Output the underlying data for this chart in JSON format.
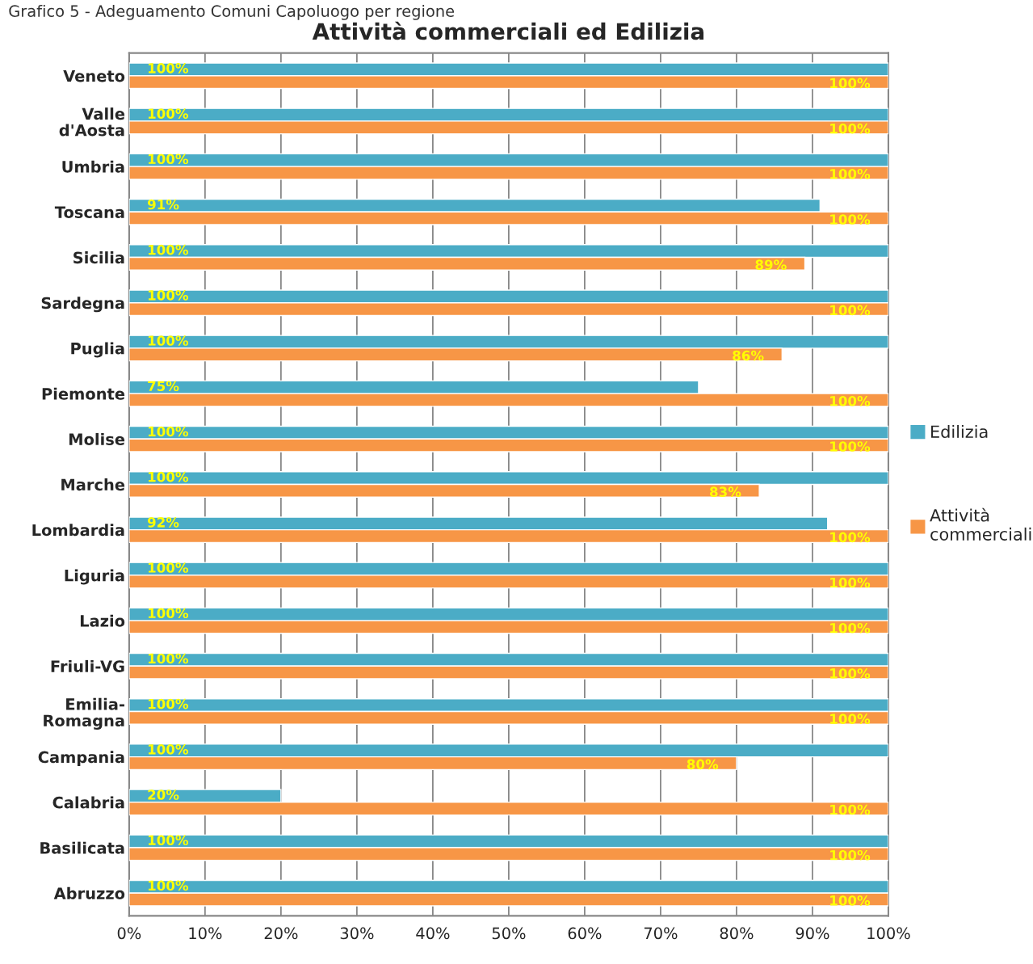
{
  "chart_data": {
    "type": "bar",
    "orientation": "horizontal",
    "title": "Attività commerciali ed Edilizia",
    "annotations": [
      "Grafico 5 - Adeguamento Comuni Capoluogo per regione"
    ],
    "categories": [
      "Veneto",
      "Valle d'Aosta",
      "Umbria",
      "Toscana",
      "Sicilia",
      "Sardegna",
      "Puglia",
      "Piemonte",
      "Molise",
      "Marche",
      "Lombardia",
      "Liguria",
      "Lazio",
      "Friuli-VG",
      "Emilia-Romagna",
      "Campania",
      "Calabria",
      "Basilicata",
      "Abruzzo"
    ],
    "series": [
      {
        "name": "Edilizia",
        "color": "#4bacc6",
        "values": [
          100,
          100,
          100,
          91,
          100,
          100,
          100,
          75,
          100,
          100,
          92,
          100,
          100,
          100,
          100,
          100,
          20,
          100,
          100
        ],
        "value_labels": [
          "100%",
          "100%",
          "100%",
          "91%",
          "100%",
          "100%",
          "100%",
          "75%",
          "100%",
          "100%",
          "92%",
          "100%",
          "100%",
          "100%",
          "100%",
          "100%",
          "20%",
          "100%",
          "100%"
        ]
      },
      {
        "name": "Attività commerciali",
        "color": "#f79646",
        "values": [
          100,
          100,
          100,
          100,
          89,
          100,
          86,
          100,
          100,
          83,
          100,
          100,
          100,
          100,
          100,
          80,
          100,
          100,
          100
        ],
        "value_labels": [
          "100%",
          "100%",
          "100%",
          "100%",
          "89%",
          "100%",
          "86%",
          "100%",
          "100%",
          "83%",
          "100%",
          "100%",
          "100%",
          "100%",
          "100%",
          "80%",
          "100%",
          "100%",
          "100%"
        ]
      }
    ],
    "xlim": [
      0,
      100
    ],
    "xticks": [
      {
        "value": 0,
        "label": "0%"
      },
      {
        "value": 10,
        "label": "10%"
      },
      {
        "value": 20,
        "label": "20%"
      },
      {
        "value": 30,
        "label": "30%"
      },
      {
        "value": 40,
        "label": "40%"
      },
      {
        "value": 50,
        "label": "50%"
      },
      {
        "value": 60,
        "label": "60%"
      },
      {
        "value": 70,
        "label": "70%"
      },
      {
        "value": 80,
        "label": "80%"
      },
      {
        "value": 90,
        "label": "90%"
      },
      {
        "value": 100,
        "label": "100%"
      }
    ],
    "grid": "x",
    "legend": "right"
  }
}
